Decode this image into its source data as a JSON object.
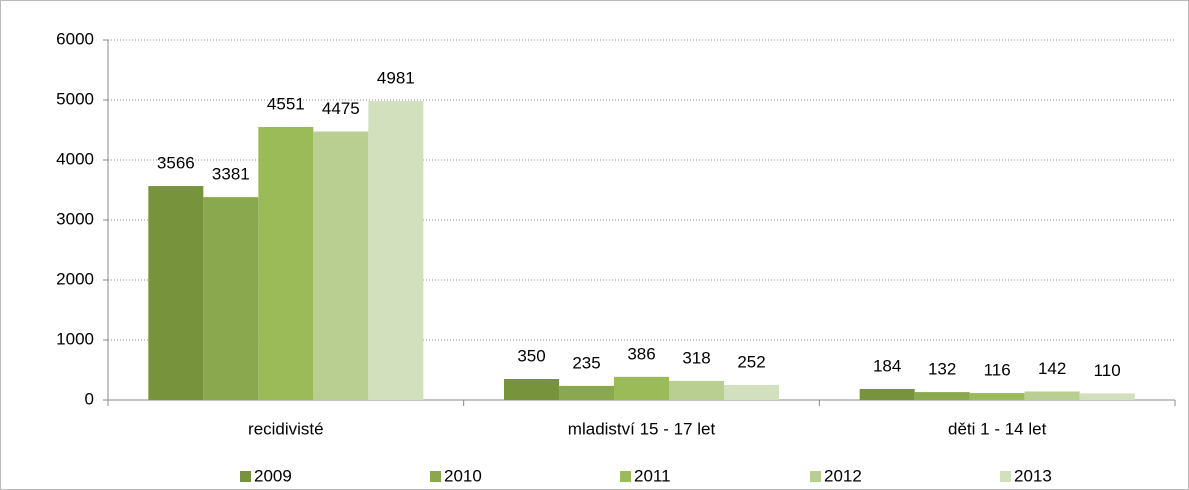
{
  "chart_data": {
    "type": "bar",
    "categories": [
      "recidivisté",
      "mladiství 15 - 17 let",
      "děti 1 - 14 let"
    ],
    "series": [
      {
        "name": "2009",
        "color": "#77933c",
        "values": [
          3566,
          350,
          184
        ]
      },
      {
        "name": "2010",
        "color": "#8aa84e",
        "values": [
          3381,
          235,
          132
        ]
      },
      {
        "name": "2011",
        "color": "#9bbb59",
        "values": [
          4551,
          386,
          116
        ]
      },
      {
        "name": "2012",
        "color": "#b9cf91",
        "values": [
          4475,
          318,
          142
        ]
      },
      {
        "name": "2013",
        "color": "#d2e0bd",
        "values": [
          4981,
          252,
          110
        ]
      }
    ],
    "ylim": [
      0,
      6000
    ],
    "yticks": [
      0,
      1000,
      2000,
      3000,
      4000,
      5000,
      6000
    ],
    "grid": true,
    "legend": "bottom",
    "data_labels": true
  }
}
